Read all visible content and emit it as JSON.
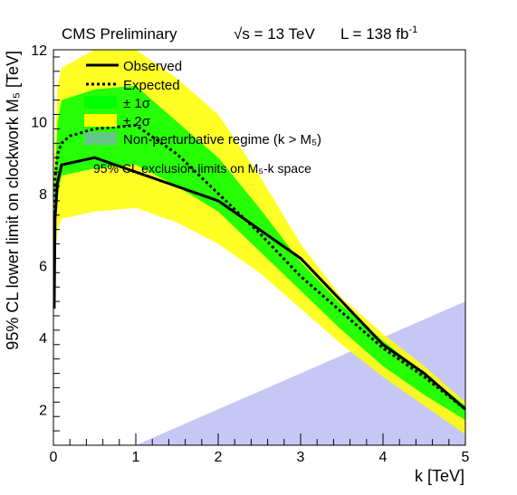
{
  "header": {
    "experiment": "CMS Preliminary",
    "energy": "√s = 13 TeV",
    "lumi": "L = 138 fb",
    "lumi_exp": "-1"
  },
  "chart_data": {
    "type": "line",
    "title": "95% CL exclusion limits on M₅-k space",
    "xlabel": "k [TeV]",
    "ylabel": "95% CL lower limit on clockwork M₅ [TeV]",
    "xlim": [
      0,
      5
    ],
    "ylim": [
      1,
      12
    ],
    "x_ticks": [
      "0",
      "1",
      "2",
      "3",
      "4",
      "5"
    ],
    "y_ticks": [
      "2",
      "4",
      "6",
      "8",
      "10",
      "12"
    ],
    "grid": false,
    "legend_position": "top-left",
    "legend": [
      {
        "key": "observed",
        "label": "Observed"
      },
      {
        "key": "expected",
        "label": "Expected"
      },
      {
        "key": "band1",
        "label": "± 1σ"
      },
      {
        "key": "band2",
        "label": "± 2σ"
      },
      {
        "key": "nonpert",
        "label": "Non-perturbative regime (k > M₅)"
      }
    ],
    "series": [
      {
        "name": "Observed",
        "color": "#000000",
        "style": "solid",
        "x": [
          0.01,
          0.02,
          0.05,
          0.1,
          0.5,
          1.0,
          1.5,
          2.0,
          2.5,
          3.0,
          3.5,
          4.0,
          4.5,
          5.0
        ],
        "y": [
          4.8,
          7.3,
          8.3,
          8.8,
          9.0,
          8.6,
          8.2,
          7.8,
          7.0,
          6.2,
          5.0,
          3.8,
          3.0,
          2.0
        ]
      },
      {
        "name": "Expected",
        "color": "#000000",
        "style": "dotted",
        "x": [
          0.01,
          0.02,
          0.05,
          0.1,
          0.2,
          0.5,
          1.0,
          1.5,
          2.0,
          2.5,
          3.0,
          3.5,
          4.0,
          4.5,
          5.0
        ],
        "y": [
          7.0,
          8.4,
          9.1,
          9.4,
          9.6,
          9.8,
          9.9,
          9.1,
          8.0,
          6.9,
          5.7,
          4.7,
          3.7,
          2.9,
          2.0
        ]
      }
    ],
    "bands": [
      {
        "name": "± 2σ",
        "color": "#ffff00",
        "x": [
          0.01,
          0.05,
          0.1,
          0.5,
          1.0,
          1.5,
          2.0,
          2.5,
          3.0,
          3.5,
          4.0,
          4.5,
          5.0
        ],
        "upper": [
          9.0,
          11.0,
          11.5,
          12.0,
          12.0,
          11.2,
          10.2,
          8.5,
          6.6,
          5.1,
          4.1,
          3.2,
          2.2
        ],
        "lower": [
          5.8,
          7.0,
          7.3,
          7.5,
          7.6,
          7.2,
          6.6,
          5.8,
          4.8,
          3.8,
          2.9,
          2.1,
          1.3
        ]
      },
      {
        "name": "± 1σ",
        "color": "#00ff00",
        "x": [
          0.01,
          0.05,
          0.1,
          0.5,
          1.0,
          1.5,
          2.0,
          2.5,
          3.0,
          3.5,
          4.0,
          4.5,
          5.0
        ],
        "upper": [
          8.0,
          10.0,
          10.6,
          10.9,
          11.0,
          10.0,
          9.0,
          7.6,
          6.1,
          4.9,
          3.9,
          3.0,
          2.1
        ],
        "lower": [
          6.4,
          8.0,
          8.5,
          8.7,
          8.8,
          8.2,
          7.5,
          6.4,
          5.3,
          4.2,
          3.2,
          2.4,
          1.7
        ]
      }
    ],
    "regions": [
      {
        "name": "Non-perturbative regime (k > M₅)",
        "color": "#9999ee",
        "x": [
          1.0,
          5.0,
          5.0,
          1.0
        ],
        "y": [
          1.0,
          5.0,
          1.0,
          1.0
        ]
      }
    ]
  }
}
